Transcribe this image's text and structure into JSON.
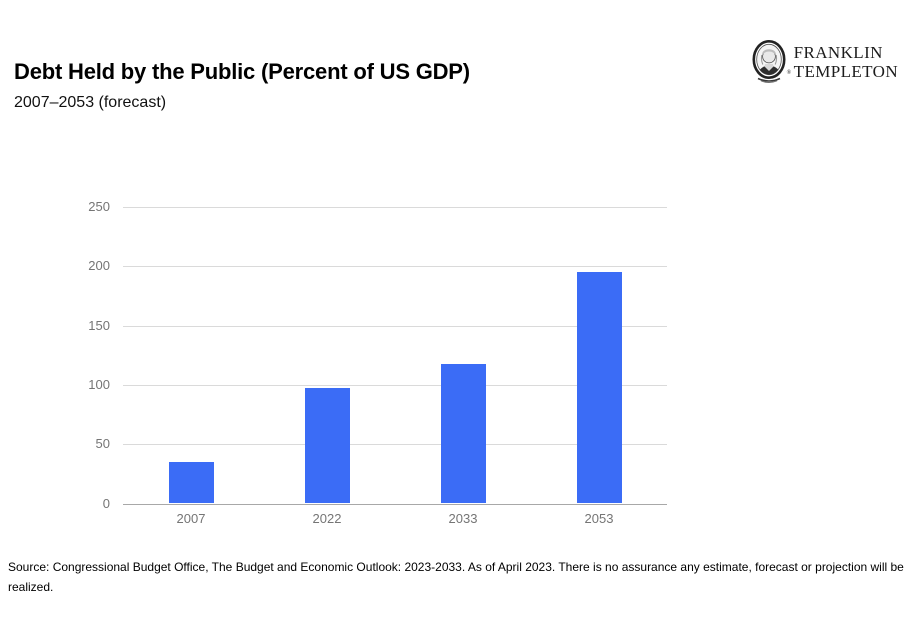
{
  "header": {
    "title": "Debt Held by the Public (Percent of US GDP)",
    "subtitle": "2007–2053 (forecast)",
    "logo": {
      "icon": "franklin-portrait-icon",
      "line1": "FRANKLIN",
      "line2": "TEMPLETON",
      "registered_mark": "®"
    }
  },
  "chart_data": {
    "type": "bar",
    "title": "Debt Held by the Public (Percent of US GDP)",
    "subtitle": "2007–2053 (forecast)",
    "categories": [
      "2007",
      "2022",
      "2033",
      "2053"
    ],
    "values": [
      35,
      97,
      118,
      195
    ],
    "series_name": "Debt held by the public, percent of US GDP",
    "xlabel": "",
    "ylabel": "",
    "ylim": [
      0,
      250
    ],
    "yticks": [
      0,
      50,
      100,
      150,
      200,
      250
    ],
    "grid": true,
    "legend": "none",
    "bar_color": "#3B6CF6",
    "gridline_color": "#dadada",
    "baseline_color": "#a8a8a8",
    "axis_text_color": "#757575"
  },
  "footer": {
    "source_text": "Source: Congressional Budget Office, The Budget and Economic Outlook: 2023-2033. As of April 2023. There is no assurance any estimate, forecast or projection will be realized."
  }
}
